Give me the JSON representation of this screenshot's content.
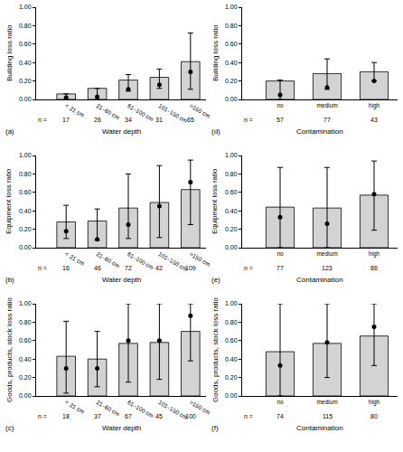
{
  "chart_data": [
    {
      "type": "bar",
      "panel_label": "(a)",
      "y_label": "Building loss ratio",
      "x_label": "Water depth",
      "categories": [
        "< 21 cm",
        "21–60 cm",
        "61–100 cm",
        "101–150 cm",
        ">150 cm"
      ],
      "values": [
        0.06,
        0.12,
        0.21,
        0.24,
        0.41
      ],
      "points": [
        0.02,
        0.03,
        0.11,
        0.16,
        0.3
      ],
      "error_low": [
        0.0,
        0.0,
        0.09,
        0.12,
        0.11
      ],
      "error_high": [
        0.06,
        0.12,
        0.27,
        0.33,
        0.72
      ],
      "n_label": "n =",
      "n": [
        17,
        26,
        34,
        31,
        65
      ],
      "ylim": [
        0,
        1
      ],
      "yticks": [
        {
          "value": 0,
          "label": "0.00"
        },
        {
          "value": 0.2,
          "label": "0.20"
        },
        {
          "value": 0.4,
          "label": "0.40"
        },
        {
          "value": 0.6,
          "label": "0.60"
        },
        {
          "value": 0.8,
          "label": "0.80"
        },
        {
          "value": 1,
          "label": "1.00"
        }
      ],
      "color": "#d3d3d3",
      "marker": "circle",
      "grid": false
    },
    {
      "type": "bar",
      "panel_label": "(b)",
      "y_label": "Equipment loss ratio",
      "x_label": "Water depth",
      "categories": [
        "< 21 cm",
        "21–60 cm",
        "61–100 cm",
        "101–150 cm",
        ">150 cm"
      ],
      "values": [
        0.28,
        0.29,
        0.43,
        0.49,
        0.63
      ],
      "points": [
        0.18,
        0.09,
        0.25,
        0.45,
        0.71
      ],
      "error_low": [
        0.1,
        0.08,
        0.1,
        0.11,
        0.25
      ],
      "error_high": [
        0.46,
        0.42,
        0.8,
        0.89,
        0.95
      ],
      "n_label": "n =",
      "n": [
        16,
        46,
        72,
        42,
        109
      ],
      "ylim": [
        0,
        1
      ],
      "yticks": [
        {
          "value": 0,
          "label": "0.00"
        },
        {
          "value": 0.2,
          "label": "0.20"
        },
        {
          "value": 0.4,
          "label": "0.40"
        },
        {
          "value": 0.6,
          "label": "0.60"
        },
        {
          "value": 0.8,
          "label": "0.80"
        },
        {
          "value": 1,
          "label": "1.00"
        }
      ],
      "color": "#d3d3d3",
      "marker": "circle",
      "grid": false
    },
    {
      "type": "bar",
      "panel_label": "(c)",
      "y_label": "Goods, products, stock loss ratio",
      "x_label": "Water depth",
      "categories": [
        "< 21 cm",
        "21–60 cm",
        "61–100 cm",
        "101–150 cm",
        ">150 cm"
      ],
      "values": [
        0.43,
        0.4,
        0.57,
        0.58,
        0.7
      ],
      "points": [
        0.3,
        0.3,
        0.6,
        0.6,
        0.87
      ],
      "error_low": [
        0.03,
        0.1,
        0.15,
        0.18,
        0.38
      ],
      "error_high": [
        0.81,
        0.7,
        1.0,
        1.0,
        1.0
      ],
      "n_label": "n =",
      "n": [
        18,
        37,
        67,
        45,
        100
      ],
      "ylim": [
        0,
        1
      ],
      "yticks": [
        {
          "value": 0,
          "label": "0.00"
        },
        {
          "value": 0.2,
          "label": "0.20"
        },
        {
          "value": 0.4,
          "label": "0.40"
        },
        {
          "value": 0.6,
          "label": "0.60"
        },
        {
          "value": 0.8,
          "label": "0.80"
        },
        {
          "value": 1,
          "label": "1.00"
        }
      ],
      "color": "#d3d3d3",
      "marker": "circle",
      "grid": false
    },
    {
      "type": "bar",
      "panel_label": "(d)",
      "y_label": "Building loss ratio",
      "x_label": "Contamination",
      "categories": [
        "no",
        "medium",
        "high"
      ],
      "values": [
        0.2,
        0.28,
        0.3
      ],
      "points": [
        0.05,
        0.13,
        0.2
      ],
      "error_low": [
        0.0,
        0.11,
        0.2
      ],
      "error_high": [
        0.21,
        0.44,
        0.4
      ],
      "n_label": "n =",
      "n": [
        57,
        77,
        43
      ],
      "ylim": [
        0,
        1
      ],
      "yticks": [
        {
          "value": 0,
          "label": "0.00"
        },
        {
          "value": 0.2,
          "label": "0.20"
        },
        {
          "value": 0.4,
          "label": "0.40"
        },
        {
          "value": 0.6,
          "label": "0.60"
        },
        {
          "value": 0.8,
          "label": "0.80"
        },
        {
          "value": 1,
          "label": "1.00"
        }
      ],
      "color": "#d3d3d3",
      "marker": "circle",
      "grid": false
    },
    {
      "type": "bar",
      "panel_label": "(e)",
      "y_label": "Equipment loss ratio",
      "x_label": "Contamination",
      "categories": [
        "no",
        "medium",
        "high"
      ],
      "values": [
        0.44,
        0.43,
        0.57
      ],
      "points": [
        0.33,
        0.26,
        0.58
      ],
      "error_low": [
        0.0,
        0.0,
        0.19
      ],
      "error_high": [
        0.87,
        0.87,
        0.94
      ],
      "n_label": "n =",
      "n": [
        77,
        123,
        86
      ],
      "ylim": [
        0,
        1
      ],
      "yticks": [
        {
          "value": 0,
          "label": "0.00"
        },
        {
          "value": 0.2,
          "label": "0.20"
        },
        {
          "value": 0.4,
          "label": "0.40"
        },
        {
          "value": 0.6,
          "label": "0.60"
        },
        {
          "value": 0.8,
          "label": "0.80"
        },
        {
          "value": 1,
          "label": "1.00"
        }
      ],
      "color": "#d3d3d3",
      "marker": "circle",
      "grid": false
    },
    {
      "type": "bar",
      "panel_label": "(f)",
      "y_label": "Goods, products, stock loss ratio",
      "x_label": "Contamination",
      "categories": [
        "no",
        "medium",
        "high"
      ],
      "values": [
        0.48,
        0.57,
        0.65
      ],
      "points": [
        0.33,
        0.58,
        0.75
      ],
      "error_low": [
        0.0,
        0.2,
        0.33
      ],
      "error_high": [
        1.0,
        1.0,
        1.0
      ],
      "n_label": "n =",
      "n": [
        74,
        115,
        80
      ],
      "ylim": [
        0,
        1
      ],
      "yticks": [
        {
          "value": 0,
          "label": "0.00"
        },
        {
          "value": 0.2,
          "label": "0.20"
        },
        {
          "value": 0.4,
          "label": "0.40"
        },
        {
          "value": 0.6,
          "label": "0.60"
        },
        {
          "value": 0.8,
          "label": "0.80"
        },
        {
          "value": 1,
          "label": "1.00"
        }
      ],
      "color": "#d3d3d3",
      "marker": "circle",
      "grid": false
    }
  ]
}
